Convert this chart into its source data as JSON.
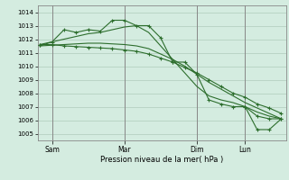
{
  "xlabel": "Pression niveau de la mer( hPa )",
  "bg_color": "#d4ece0",
  "grid_color": "#b0ccbc",
  "line_color": "#2d6e2d",
  "ylim": [
    1004.5,
    1014.5
  ],
  "yticks": [
    1005,
    1006,
    1007,
    1008,
    1009,
    1010,
    1011,
    1012,
    1013,
    1014
  ],
  "day_labels": [
    "Sam",
    "Mar",
    "Dim",
    "Lun"
  ],
  "day_positions": [
    0.5,
    3.5,
    6.5,
    8.5
  ],
  "xlim": [
    -0.1,
    10.2
  ],
  "series1_x": [
    0,
    0.5,
    1.0,
    1.5,
    2.0,
    2.5,
    3.0,
    3.5,
    4.0,
    4.5,
    5.0,
    5.5,
    6.0,
    6.5,
    7.0,
    7.5,
    8.0,
    8.5,
    9.0,
    9.5,
    10.0
  ],
  "series1_y": [
    1011.6,
    1011.8,
    1012.7,
    1012.5,
    1012.7,
    1012.6,
    1013.4,
    1013.4,
    1013.0,
    1013.0,
    1012.1,
    1010.3,
    1010.3,
    1009.4,
    1007.5,
    1007.2,
    1007.0,
    1007.0,
    1006.3,
    1006.1,
    1006.1
  ],
  "series2_x": [
    0,
    0.5,
    1.0,
    1.5,
    2.0,
    2.5,
    3.0,
    3.5,
    4.0,
    4.5,
    5.0,
    5.5,
    6.0,
    6.5,
    7.0,
    7.5,
    8.0,
    8.5,
    9.0,
    9.5,
    10.0
  ],
  "series2_y": [
    1011.5,
    1011.8,
    1012.0,
    1012.2,
    1012.4,
    1012.5,
    1012.7,
    1012.9,
    1013.0,
    1012.5,
    1011.5,
    1010.5,
    1009.5,
    1008.5,
    1007.8,
    1007.5,
    1007.3,
    1007.0,
    1006.6,
    1006.3,
    1006.1
  ],
  "series3_x": [
    0,
    0.5,
    1.0,
    1.5,
    2.0,
    2.5,
    3.0,
    3.5,
    4.0,
    4.5,
    5.0,
    5.5,
    6.0,
    6.5,
    7.0,
    7.5,
    8.0,
    8.5,
    9.0,
    9.5,
    10.0
  ],
  "series3_y": [
    1011.6,
    1011.6,
    1011.5,
    1011.45,
    1011.4,
    1011.35,
    1011.3,
    1011.2,
    1011.1,
    1010.9,
    1010.6,
    1010.3,
    1009.9,
    1009.5,
    1009.0,
    1008.5,
    1008.0,
    1007.7,
    1007.2,
    1006.9,
    1006.5
  ],
  "series4_x": [
    0,
    0.5,
    1.0,
    1.5,
    2.0,
    2.5,
    3.0,
    3.5,
    4.0,
    4.5,
    5.0,
    5.5,
    6.0,
    6.5,
    7.0,
    7.5,
    8.0,
    8.5,
    9.0,
    9.5,
    10.0
  ],
  "series4_y": [
    1011.5,
    1011.55,
    1011.6,
    1011.65,
    1011.7,
    1011.7,
    1011.65,
    1011.6,
    1011.5,
    1011.3,
    1010.9,
    1010.5,
    1010.0,
    1009.4,
    1008.8,
    1008.3,
    1007.8,
    1007.3,
    1006.9,
    1006.5,
    1006.1
  ],
  "series5_x": [
    8.5,
    9.0,
    9.5,
    10.0
  ],
  "series5_y": [
    1007.0,
    1005.3,
    1005.3,
    1006.1
  ]
}
